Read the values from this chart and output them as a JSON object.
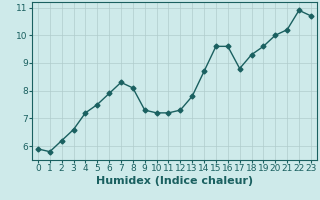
{
  "x": [
    0,
    1,
    2,
    3,
    4,
    5,
    6,
    7,
    8,
    9,
    10,
    11,
    12,
    13,
    14,
    15,
    16,
    17,
    18,
    19,
    20,
    21,
    22,
    23
  ],
  "y": [
    5.9,
    5.8,
    6.2,
    6.6,
    7.2,
    7.5,
    7.9,
    8.3,
    8.1,
    7.3,
    7.2,
    7.2,
    7.3,
    7.8,
    8.7,
    9.6,
    9.6,
    8.8,
    9.3,
    9.6,
    10.0,
    10.2,
    10.9,
    10.7
  ],
  "line_color": "#1a6060",
  "marker": "D",
  "marker_size": 2.5,
  "bg_color": "#ceeaea",
  "grid_color": "#b0cccc",
  "xlabel": "Humidex (Indice chaleur)",
  "ylabel": "",
  "xlim": [
    -0.5,
    23.5
  ],
  "ylim": [
    5.5,
    11.2
  ],
  "yticks": [
    6,
    7,
    8,
    9,
    10,
    11
  ],
  "xticks": [
    0,
    1,
    2,
    3,
    4,
    5,
    6,
    7,
    8,
    9,
    10,
    11,
    12,
    13,
    14,
    15,
    16,
    17,
    18,
    19,
    20,
    21,
    22,
    23
  ],
  "tick_fontsize": 6.5,
  "xlabel_fontsize": 8,
  "line_width": 1.0
}
